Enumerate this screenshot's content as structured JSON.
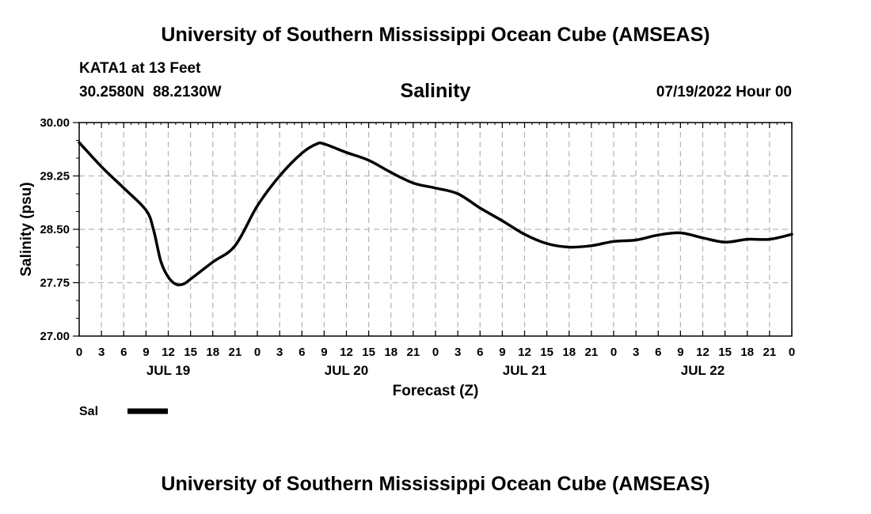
{
  "header": {
    "title": "University of Southern Mississippi Ocean Cube (AMSEAS)",
    "station": "KATA1 at 13 Feet",
    "coordinates": "30.2580N  88.2130W",
    "datetime": "07/19/2022 Hour 00"
  },
  "footer": {
    "title": "University of Southern Mississippi Ocean Cube (AMSEAS)"
  },
  "colors": {
    "line": "#000000",
    "grid": "#b4b4b4",
    "background": "#ffffff"
  },
  "chart_data": {
    "type": "line",
    "title": "Salinity",
    "xlabel": "Forecast (Z)",
    "ylabel": "Salinity (psu)",
    "ylim": [
      27.0,
      30.0
    ],
    "xlim": [
      0,
      96
    ],
    "yticks": [
      "30.00",
      "29.25",
      "28.50",
      "27.75",
      "27.00"
    ],
    "ytick_values": [
      30.0,
      29.25,
      28.5,
      27.75,
      27.0
    ],
    "xtick_labels": [
      "0",
      "3",
      "6",
      "9",
      "12",
      "15",
      "18",
      "21",
      "0",
      "3",
      "6",
      "9",
      "12",
      "15",
      "18",
      "21",
      "0",
      "3",
      "6",
      "9",
      "12",
      "15",
      "18",
      "21",
      "0",
      "3",
      "6",
      "9",
      "12",
      "15",
      "18",
      "21",
      "0"
    ],
    "day_labels": [
      {
        "label": "JUL 19",
        "hour": 12
      },
      {
        "label": "JUL 20",
        "hour": 36
      },
      {
        "label": "JUL 21",
        "hour": 60
      },
      {
        "label": "JUL 22",
        "hour": 84
      }
    ],
    "grid": true,
    "legend": {
      "position": "bottom-left",
      "label": "Sal"
    },
    "series": [
      {
        "name": "Sal",
        "x": [
          0,
          3,
          6,
          9,
          10,
          11,
          12,
          13,
          14,
          15,
          18,
          21,
          24,
          27,
          30,
          32,
          33,
          36,
          39,
          42,
          45,
          48,
          51,
          54,
          57,
          60,
          63,
          66,
          69,
          72,
          75,
          78,
          81,
          84,
          87,
          90,
          93,
          96
        ],
        "values": [
          29.72,
          29.38,
          29.08,
          28.77,
          28.5,
          28.05,
          27.83,
          27.73,
          27.73,
          27.8,
          28.04,
          28.27,
          28.83,
          29.25,
          29.57,
          29.7,
          29.7,
          29.58,
          29.47,
          29.3,
          29.15,
          29.08,
          29.0,
          28.8,
          28.62,
          28.43,
          28.3,
          28.25,
          28.27,
          28.33,
          28.35,
          28.42,
          28.45,
          28.38,
          28.32,
          28.36,
          28.36,
          28.43
        ]
      }
    ]
  }
}
